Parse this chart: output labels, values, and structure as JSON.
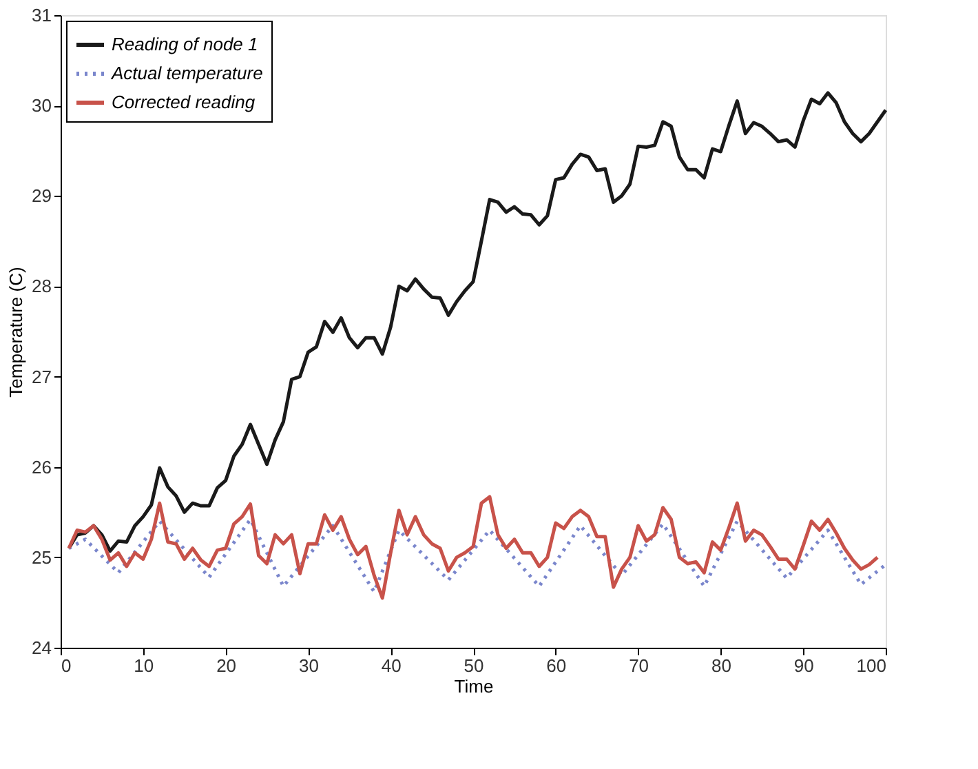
{
  "chart_data": {
    "type": "line",
    "xlabel": "Time",
    "ylabel": "Temperature (C)",
    "xlim": [
      0,
      100
    ],
    "xticks": [
      0,
      10,
      20,
      30,
      40,
      50,
      60,
      70,
      80,
      90,
      100
    ],
    "ylim": [
      24,
      31
    ],
    "yticks": [
      24,
      25,
      26,
      27,
      28,
      29,
      30,
      31
    ],
    "grid": false,
    "legend": "top left",
    "series": [
      {
        "name": "Reading of node 1",
        "color": "#1a1a1a",
        "line_style": "solid",
        "x": [
          1,
          2,
          3,
          4,
          5,
          6,
          7,
          8,
          9,
          10,
          11,
          12,
          13,
          14,
          15,
          16,
          17,
          18,
          19,
          20,
          21,
          22,
          23,
          24,
          25,
          26,
          27,
          28,
          29,
          30,
          31,
          32,
          33,
          34,
          35,
          36,
          37,
          38,
          39,
          40,
          41,
          42,
          43,
          44,
          45,
          46,
          47,
          48,
          49,
          50,
          51,
          52,
          53,
          54,
          55,
          56,
          57,
          58,
          59,
          60,
          61,
          62,
          63,
          64,
          65,
          66,
          67,
          68,
          69,
          70,
          71,
          72,
          73,
          74,
          75,
          76,
          77,
          78,
          79,
          80,
          81,
          82,
          83,
          84,
          85,
          86,
          87,
          88,
          89,
          90,
          91,
          92,
          93,
          94,
          95,
          96,
          97,
          98,
          99,
          100
        ],
        "values": [
          25.1,
          25.25,
          25.27,
          25.35,
          25.25,
          25.07,
          25.18,
          25.17,
          25.35,
          25.45,
          25.58,
          25.99,
          25.78,
          25.68,
          25.5,
          25.6,
          25.57,
          25.57,
          25.77,
          25.85,
          26.12,
          26.25,
          26.47,
          26.25,
          26.03,
          26.3,
          26.5,
          26.97,
          27.0,
          27.27,
          27.33,
          27.61,
          27.49,
          27.65,
          27.43,
          27.32,
          27.43,
          27.43,
          27.25,
          27.55,
          28.0,
          27.95,
          28.08,
          27.97,
          27.88,
          27.87,
          27.68,
          27.83,
          27.95,
          28.05,
          28.5,
          28.96,
          28.93,
          28.82,
          28.88,
          28.8,
          28.79,
          28.68,
          28.78,
          29.18,
          29.2,
          29.35,
          29.46,
          29.43,
          29.28,
          29.3,
          28.93,
          29.0,
          29.13,
          29.55,
          29.54,
          29.56,
          29.82,
          29.77,
          29.43,
          29.29,
          29.29,
          29.2,
          29.52,
          29.49,
          29.78,
          30.05,
          29.69,
          29.81,
          29.77,
          29.69,
          29.6,
          29.62,
          29.54,
          29.83,
          30.07,
          30.02,
          30.14,
          30.03,
          29.82,
          29.69,
          29.6,
          29.69,
          29.82,
          29.95
        ]
      },
      {
        "name": "Actual temperature",
        "color": "#7a86cc",
        "line_style": "dotted",
        "x": [
          1,
          3,
          7,
          12,
          18,
          23,
          27,
          33,
          38,
          41,
          47,
          52,
          58,
          63,
          68,
          73,
          78,
          82,
          88,
          93,
          97,
          100
        ],
        "values": [
          25.1,
          25.2,
          24.83,
          25.4,
          24.78,
          25.42,
          24.68,
          25.35,
          24.62,
          25.3,
          24.75,
          25.3,
          24.68,
          25.35,
          24.8,
          25.37,
          24.68,
          25.4,
          24.77,
          25.3,
          24.7,
          24.92
        ]
      },
      {
        "name": "Corrected reading",
        "color": "#c8524a",
        "line_style": "solid",
        "x": [
          1,
          2,
          3,
          4,
          5,
          6,
          7,
          8,
          9,
          10,
          11,
          12,
          13,
          14,
          15,
          16,
          17,
          18,
          19,
          20,
          21,
          22,
          23,
          24,
          25,
          26,
          27,
          28,
          29,
          30,
          31,
          32,
          33,
          34,
          35,
          36,
          37,
          38,
          39,
          40,
          41,
          42,
          43,
          44,
          45,
          46,
          47,
          48,
          49,
          50,
          51,
          52,
          53,
          54,
          55,
          56,
          57,
          58,
          59,
          60,
          61,
          62,
          63,
          64,
          65,
          66,
          67,
          68,
          69,
          70,
          71,
          72,
          73,
          74,
          75,
          76,
          77,
          78,
          79,
          80,
          81,
          82,
          83,
          84,
          85,
          86,
          87,
          88,
          89,
          90,
          91,
          92,
          93,
          94,
          95,
          96,
          97,
          98,
          99
        ],
        "values": [
          25.1,
          25.3,
          25.28,
          25.35,
          25.2,
          24.97,
          25.05,
          24.9,
          25.05,
          24.98,
          25.2,
          25.6,
          25.17,
          25.15,
          24.98,
          25.1,
          24.97,
          24.9,
          25.08,
          25.1,
          25.37,
          25.45,
          25.59,
          25.02,
          24.93,
          25.25,
          25.15,
          25.25,
          24.82,
          25.15,
          25.15,
          25.47,
          25.3,
          25.45,
          25.2,
          25.03,
          25.12,
          24.8,
          24.55,
          25.05,
          25.52,
          25.25,
          25.45,
          25.25,
          25.15,
          25.1,
          24.85,
          25.0,
          25.05,
          25.12,
          25.6,
          25.67,
          25.25,
          25.1,
          25.2,
          25.05,
          25.05,
          24.9,
          25.0,
          25.38,
          25.32,
          25.45,
          25.52,
          25.45,
          25.23,
          25.23,
          24.67,
          24.87,
          25.0,
          25.35,
          25.18,
          25.25,
          25.55,
          25.42,
          25.0,
          24.93,
          24.95,
          24.83,
          25.17,
          25.08,
          25.33,
          25.6,
          25.18,
          25.3,
          25.25,
          25.12,
          24.98,
          24.98,
          24.87,
          25.13,
          25.4,
          25.3,
          25.42,
          25.27,
          25.1,
          24.97,
          24.87,
          24.92,
          25.0
        ]
      }
    ]
  }
}
